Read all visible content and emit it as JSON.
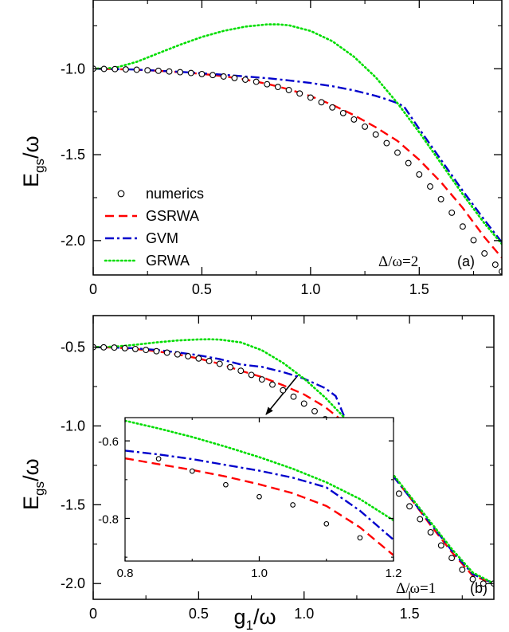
{
  "chart_data": [
    {
      "id": "a",
      "type": "line",
      "panel_label": "(a)",
      "annotation": "Δ/ω=2",
      "ylabel": {
        "main": "E",
        "sub": "gs",
        "tail": "/ω"
      },
      "xlim": [
        0,
        1.88
      ],
      "ylim": [
        -2.2,
        -0.6
      ],
      "xticks": [
        0,
        0.5,
        1.0,
        1.5
      ],
      "xtick_labels": [
        "0",
        "0.5",
        "1.0",
        "1.5"
      ],
      "yticks": [
        -1.0,
        -1.5,
        -2.0
      ],
      "ytick_labels": [
        "-1.0",
        "-1.5",
        "-2.0"
      ],
      "legend": [
        "numerics",
        "GSRWA",
        "GVM",
        "GRWA"
      ],
      "legend_position": "lower-left",
      "series": [
        {
          "name": "numerics",
          "style": "circles",
          "color": "#000000",
          "x": [
            0.0,
            0.05,
            0.1,
            0.15,
            0.2,
            0.25,
            0.3,
            0.35,
            0.4,
            0.45,
            0.5,
            0.55,
            0.6,
            0.65,
            0.7,
            0.75,
            0.8,
            0.85,
            0.9,
            0.95,
            1.0,
            1.05,
            1.1,
            1.15,
            1.2,
            1.25,
            1.3,
            1.35,
            1.4,
            1.45,
            1.5,
            1.55,
            1.6,
            1.65,
            1.7,
            1.75,
            1.8,
            1.85,
            1.88
          ],
          "y": [
            -1.0,
            -1.001,
            -1.002,
            -1.004,
            -1.006,
            -1.009,
            -1.012,
            -1.016,
            -1.02,
            -1.025,
            -1.031,
            -1.037,
            -1.045,
            -1.054,
            -1.064,
            -1.076,
            -1.09,
            -1.106,
            -1.124,
            -1.144,
            -1.168,
            -1.195,
            -1.225,
            -1.258,
            -1.295,
            -1.337,
            -1.383,
            -1.433,
            -1.488,
            -1.549,
            -1.615,
            -1.685,
            -1.759,
            -1.838,
            -1.918,
            -1.998,
            -2.075,
            -2.14,
            -2.18
          ]
        },
        {
          "name": "GSRWA",
          "style": "dash",
          "color": "#ff0000",
          "x": [
            0.0,
            0.1,
            0.2,
            0.3,
            0.4,
            0.5,
            0.6,
            0.7,
            0.8,
            0.9,
            1.0,
            1.1,
            1.2,
            1.3,
            1.4,
            1.5,
            1.6,
            1.7,
            1.8,
            1.88
          ],
          "y": [
            -1.0,
            -1.002,
            -1.006,
            -1.012,
            -1.02,
            -1.03,
            -1.044,
            -1.063,
            -1.088,
            -1.12,
            -1.16,
            -1.21,
            -1.27,
            -1.34,
            -1.42,
            -1.53,
            -1.66,
            -1.81,
            -1.98,
            -2.1
          ]
        },
        {
          "name": "GVM",
          "style": "dashdot",
          "color": "#0000cc",
          "x": [
            0.0,
            0.2,
            0.4,
            0.6,
            0.8,
            0.9,
            1.0,
            1.1,
            1.2,
            1.3,
            1.35,
            1.4,
            1.43,
            1.5,
            1.6,
            1.7,
            1.8,
            1.88
          ],
          "y": [
            -1.0,
            -1.005,
            -1.018,
            -1.035,
            -1.055,
            -1.068,
            -1.083,
            -1.102,
            -1.126,
            -1.158,
            -1.178,
            -1.2,
            -1.22,
            -1.35,
            -1.53,
            -1.71,
            -1.88,
            -2.01
          ]
        },
        {
          "name": "GRWA",
          "style": "dots",
          "color": "#00dd00",
          "x": [
            0.0,
            0.1,
            0.2,
            0.3,
            0.4,
            0.5,
            0.6,
            0.7,
            0.8,
            0.85,
            0.9,
            1.0,
            1.1,
            1.2,
            1.3,
            1.4,
            1.5,
            1.6,
            1.7,
            1.8,
            1.88
          ],
          "y": [
            -1.0,
            -0.995,
            -0.96,
            -0.91,
            -0.86,
            -0.815,
            -0.78,
            -0.755,
            -0.742,
            -0.742,
            -0.747,
            -0.78,
            -0.84,
            -0.93,
            -1.05,
            -1.2,
            -1.37,
            -1.55,
            -1.73,
            -1.9,
            -2.02
          ]
        }
      ]
    },
    {
      "id": "b",
      "type": "line",
      "panel_label": "(b)",
      "annotation": "Δ/ω=1",
      "xlabel": {
        "main": "g",
        "sub": "1",
        "tail": "/ω"
      },
      "ylabel": {
        "main": "E",
        "sub": "gs",
        "tail": "/ω"
      },
      "xlim": [
        0,
        1.9
      ],
      "ylim": [
        -2.1,
        -0.3
      ],
      "xticks": [
        0,
        0.5,
        1.0,
        1.5
      ],
      "xtick_labels": [
        "0",
        "0.5",
        "1.0",
        "1.5"
      ],
      "yticks": [
        -0.5,
        -1.0,
        -1.5,
        -2.0
      ],
      "ytick_labels": [
        "-0.5",
        "-1.0",
        "-1.5",
        "-2.0"
      ],
      "series": [
        {
          "name": "numerics",
          "style": "circles",
          "color": "#000000",
          "x": [
            0.0,
            0.05,
            0.1,
            0.15,
            0.2,
            0.25,
            0.3,
            0.35,
            0.4,
            0.45,
            0.5,
            0.55,
            0.6,
            0.65,
            0.7,
            0.75,
            0.8,
            0.85,
            0.9,
            0.95,
            1.0,
            1.05,
            1.1,
            1.15,
            1.2,
            1.25,
            1.3,
            1.35,
            1.4,
            1.45,
            1.5,
            1.55,
            1.6,
            1.65,
            1.7,
            1.75,
            1.8,
            1.85,
            1.9
          ],
          "y": [
            -0.5,
            -0.501,
            -0.503,
            -0.507,
            -0.512,
            -0.518,
            -0.526,
            -0.535,
            -0.546,
            -0.558,
            -0.572,
            -0.588,
            -0.606,
            -0.627,
            -0.65,
            -0.676,
            -0.705,
            -0.738,
            -0.774,
            -0.814,
            -0.858,
            -0.906,
            -0.958,
            -1.014,
            -1.074,
            -1.138,
            -1.205,
            -1.276,
            -1.351,
            -1.429,
            -1.51,
            -1.592,
            -1.675,
            -1.758,
            -1.838,
            -1.912,
            -1.972,
            -2.0,
            -2.0
          ]
        },
        {
          "name": "GSRWA",
          "style": "dash",
          "color": "#ff0000",
          "x": [
            0.0,
            0.1,
            0.2,
            0.3,
            0.4,
            0.5,
            0.6,
            0.7,
            0.8,
            0.9,
            1.0,
            1.1,
            1.2,
            1.3,
            1.4,
            1.5,
            1.6,
            1.7,
            1.8,
            1.9
          ],
          "y": [
            -0.5,
            -0.503,
            -0.512,
            -0.526,
            -0.546,
            -0.572,
            -0.606,
            -0.65,
            -0.69,
            -0.742,
            -0.8,
            -0.88,
            -0.988,
            -1.12,
            -1.28,
            -1.45,
            -1.63,
            -1.8,
            -1.95,
            -2.0
          ]
        },
        {
          "name": "GVM",
          "style": "dashdot",
          "color": "#0000cc",
          "x": [
            0.0,
            0.1,
            0.2,
            0.3,
            0.4,
            0.5,
            0.6,
            0.7,
            0.8,
            0.9,
            1.0,
            1.1,
            1.15,
            1.2,
            1.3,
            1.4,
            1.5,
            1.6,
            1.7,
            1.8,
            1.9
          ],
          "y": [
            -0.5,
            -0.502,
            -0.508,
            -0.518,
            -0.533,
            -0.552,
            -0.576,
            -0.61,
            -0.625,
            -0.658,
            -0.7,
            -0.76,
            -0.81,
            -0.97,
            -1.12,
            -1.28,
            -1.45,
            -1.62,
            -1.79,
            -1.94,
            -2.0
          ]
        },
        {
          "name": "GRWA",
          "style": "dots",
          "color": "#00dd00",
          "x": [
            0.0,
            0.1,
            0.2,
            0.3,
            0.4,
            0.5,
            0.55,
            0.6,
            0.7,
            0.8,
            0.9,
            1.0,
            1.1,
            1.2,
            1.3,
            1.4,
            1.5,
            1.6,
            1.7,
            1.8,
            1.9
          ],
          "y": [
            -0.5,
            -0.497,
            -0.485,
            -0.47,
            -0.458,
            -0.451,
            -0.45,
            -0.452,
            -0.47,
            -0.52,
            -0.6,
            -0.7,
            -0.82,
            -0.96,
            -1.11,
            -1.27,
            -1.44,
            -1.61,
            -1.78,
            -1.93,
            -2.0
          ]
        }
      ]
    },
    {
      "id": "inset",
      "type": "line",
      "xlim": [
        0.8,
        1.2
      ],
      "ylim": [
        -0.91,
        -0.54
      ],
      "xticks": [
        0.8,
        1.0,
        1.2
      ],
      "xtick_labels": [
        "0.8",
        "1.0",
        "1.2"
      ],
      "yticks": [
        -0.6,
        -0.8
      ],
      "ytick_labels": [
        "-0.6",
        "-0.8"
      ],
      "series": [
        {
          "name": "numerics",
          "style": "circles",
          "color": "#000000",
          "x": [
            0.85,
            0.9,
            0.95,
            1.0,
            1.05,
            1.1,
            1.15
          ],
          "y": [
            -0.646,
            -0.678,
            -0.713,
            -0.744,
            -0.765,
            -0.814,
            -0.85
          ]
        },
        {
          "name": "GSRWA",
          "style": "dash",
          "color": "#ff0000",
          "x": [
            0.8,
            0.85,
            0.9,
            0.95,
            1.0,
            1.05,
            1.1,
            1.15,
            1.2
          ],
          "y": [
            -0.645,
            -0.66,
            -0.675,
            -0.692,
            -0.712,
            -0.735,
            -0.768,
            -0.823,
            -0.895
          ]
        },
        {
          "name": "GVM",
          "style": "dashdot",
          "color": "#0000cc",
          "x": [
            0.8,
            0.85,
            0.9,
            0.95,
            1.0,
            1.05,
            1.1,
            1.15,
            1.2
          ],
          "y": [
            -0.625,
            -0.635,
            -0.647,
            -0.662,
            -0.677,
            -0.695,
            -0.72,
            -0.78,
            -0.855
          ]
        },
        {
          "name": "GRWA",
          "style": "dots",
          "color": "#00dd00",
          "x": [
            0.8,
            0.85,
            0.9,
            0.95,
            1.0,
            1.05,
            1.1,
            1.15,
            1.2
          ],
          "y": [
            -0.548,
            -0.568,
            -0.59,
            -0.615,
            -0.642,
            -0.672,
            -0.707,
            -0.75,
            -0.805
          ]
        }
      ]
    }
  ]
}
